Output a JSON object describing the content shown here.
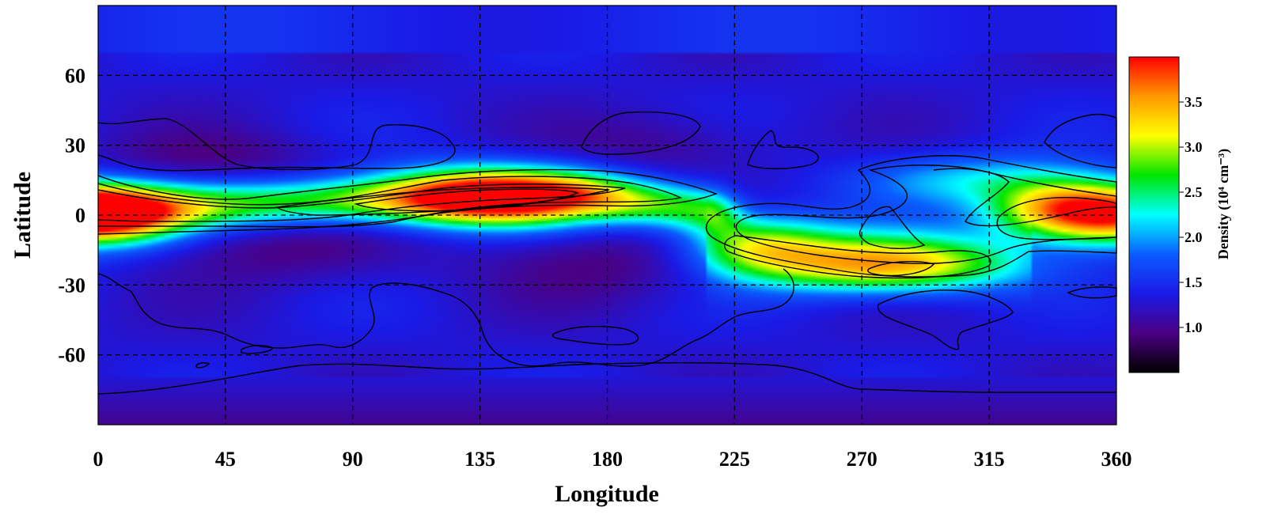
{
  "chart_data": {
    "type": "heatmap",
    "title": "",
    "xlabel": "Longitude",
    "ylabel": "Latitude",
    "xlim": [
      0,
      360
    ],
    "ylim": [
      -90,
      90
    ],
    "x_ticks": [
      0,
      45,
      90,
      135,
      180,
      225,
      270,
      315,
      360
    ],
    "y_ticks": [
      60,
      30,
      0,
      -30,
      -60
    ],
    "x_tick_labels": [
      "0",
      "45",
      "90",
      "135",
      "180",
      "225",
      "270",
      "315",
      "360"
    ],
    "y_tick_labels": [
      "60",
      "30",
      "0",
      "-30",
      "-60"
    ],
    "grid": true,
    "grid_style": "dashed",
    "colorbar": {
      "label": "Density (10⁴ cm⁻³)",
      "range": [
        0.5,
        4.0
      ],
      "ticks": [
        1.0,
        1.5,
        2.0,
        2.5,
        3.0,
        3.5
      ],
      "tick_labels": [
        "1.0",
        "1.5",
        "2.0",
        "2.5",
        "3.0",
        "3.5"
      ],
      "colormap": [
        "#000000",
        "#4b0082",
        "#1a1ae6",
        "#0a5cff",
        "#00ffff",
        "#00e600",
        "#ffff00",
        "#ff9900",
        "#ff0000"
      ]
    },
    "contour_levels": [
      1.5,
      2.0,
      2.5,
      3.0,
      3.5
    ],
    "features": [
      {
        "type": "band",
        "name": "equatorial band",
        "lon_range": [
          0,
          215
        ],
        "lat_center": 3,
        "peak_value": 3.9
      },
      {
        "type": "maximum",
        "lon": 140,
        "lat": 8,
        "value": 3.9
      },
      {
        "type": "maximum",
        "lon": 5,
        "lat": 0,
        "value": 3.6
      },
      {
        "type": "maximum",
        "lon": 340,
        "lat": 2,
        "value": 3.6
      },
      {
        "type": "maximum",
        "lon": 280,
        "lat": -22,
        "value": 3.0
      },
      {
        "type": "maximum",
        "lon": 232,
        "lat": -12,
        "value": 2.8
      },
      {
        "type": "background",
        "lat_range": [
          -90,
          -75
        ],
        "value": 1.0
      }
    ]
  }
}
